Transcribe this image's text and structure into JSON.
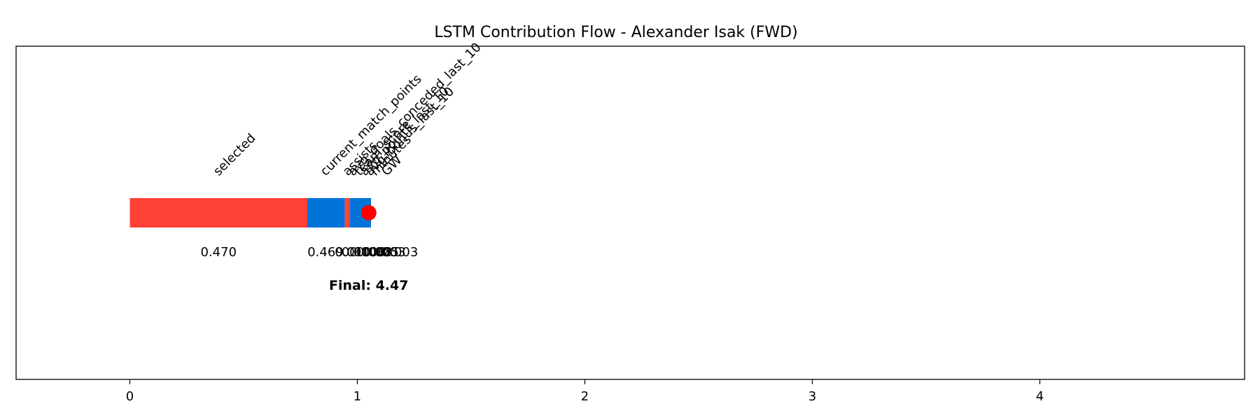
{
  "colors": {
    "positive": "#FF4136",
    "negative": "#0074D9",
    "marker": "#FF0000",
    "frame": "#000000",
    "background": "#FFFFFF"
  },
  "chart_data": {
    "type": "bar",
    "subtype": "waterfall-horizontal",
    "title": "LSTM Contribution Flow - Alexander Isak (FWD)",
    "xlabel": "",
    "ylabel": "",
    "xlim": [
      -0.5,
      4.9
    ],
    "xticks": [
      0,
      1,
      2,
      3,
      4
    ],
    "grid": false,
    "legend": "none",
    "steps": [
      {
        "feature": "selected",
        "start": 0,
        "end": 0.78,
        "sign": "positive",
        "label": "0.470"
      },
      {
        "feature": "current_match_points",
        "start": 0.78,
        "end": 0.94,
        "sign": "negative",
        "label": "0.469"
      },
      {
        "feature": "assists",
        "start": 0.94,
        "end": 0.945,
        "sign": "negative",
        "label": "0.010"
      },
      {
        "feature": "avg_goals_conceded_last_10",
        "start": 0.945,
        "end": 0.955,
        "sign": "positive",
        "label": "0.010"
      },
      {
        "feature": "team_score",
        "start": 0.955,
        "end": 0.96,
        "sign": "positive",
        "label": "0.006"
      },
      {
        "feature": "avg_points_last_10",
        "start": 0.96,
        "end": 0.965,
        "sign": "positive",
        "label": "0.008"
      },
      {
        "feature": "avg_bonus_last_10",
        "start": 0.965,
        "end": 0.97,
        "sign": "negative",
        "label": "0.005"
      },
      {
        "feature": "minutes",
        "start": 0.97,
        "end": 1.0,
        "sign": "negative",
        "label": "0.003"
      },
      {
        "feature": "GW",
        "start": 1.0,
        "end": 1.06,
        "sign": "negative",
        "label": "0.003"
      }
    ],
    "final_marker_x": 1.05,
    "final_label": "Final: 4.47"
  }
}
